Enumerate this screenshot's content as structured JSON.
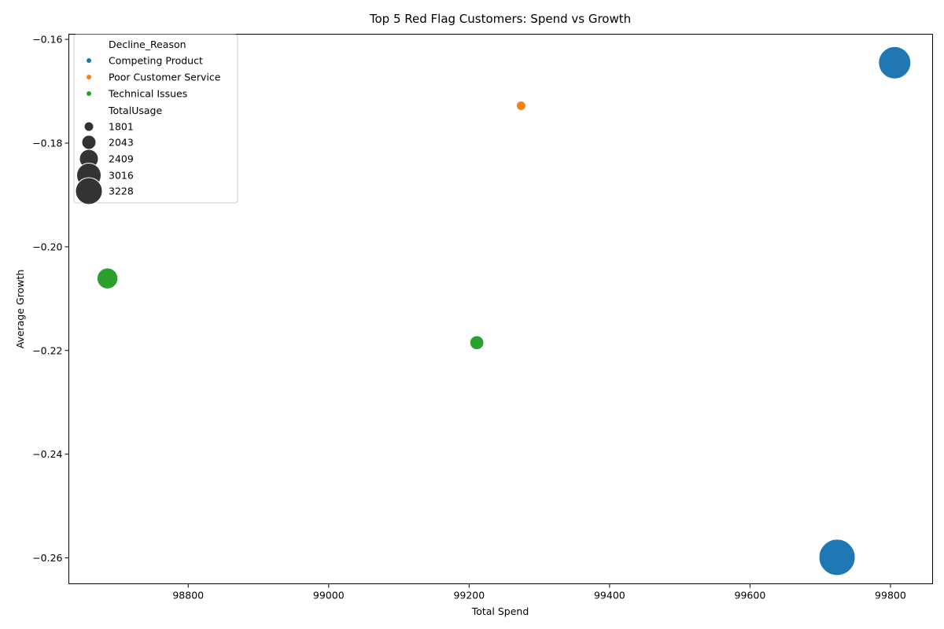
{
  "chart_data": {
    "type": "scatter",
    "title": "Top 5 Red Flag Customers: Spend vs Growth",
    "xlabel": "Total Spend",
    "ylabel": "Average Growth",
    "xlim": [
      98630,
      99860
    ],
    "ylim": [
      -0.265,
      -0.159
    ],
    "xticks": [
      98800,
      99000,
      99200,
      99400,
      99600,
      99800
    ],
    "xtick_labels": [
      "98800",
      "99000",
      "99200",
      "99400",
      "99600",
      "99800"
    ],
    "yticks": [
      -0.26,
      -0.24,
      -0.22,
      -0.2,
      -0.18,
      -0.16
    ],
    "ytick_labels": [
      "−0.26",
      "−0.24",
      "−0.22",
      "−0.20",
      "−0.18",
      "−0.16"
    ],
    "grid": false,
    "legend_placement": "top-left",
    "hue_title": "Decline_Reason",
    "size_title": "TotalUsage",
    "categories": [
      {
        "name": "Competing Product",
        "color": "#1f77b4"
      },
      {
        "name": "Poor Customer Service",
        "color": "#ff7f0e"
      },
      {
        "name": "Technical Issues",
        "color": "#2ca02c"
      }
    ],
    "size_levels": [
      {
        "label": "1801",
        "value": 1801
      },
      {
        "label": "2043",
        "value": 2043
      },
      {
        "label": "2409",
        "value": 2409
      },
      {
        "label": "3016",
        "value": 3016
      },
      {
        "label": "3228",
        "value": 3228
      }
    ],
    "points": [
      {
        "x": 99806,
        "y": -0.1645,
        "usage": 3016,
        "reason": "Competing Product"
      },
      {
        "x": 99274,
        "y": -0.1728,
        "usage": 1801,
        "reason": "Poor Customer Service"
      },
      {
        "x": 98685,
        "y": -0.2061,
        "usage": 2409,
        "reason": "Technical Issues"
      },
      {
        "x": 99211,
        "y": -0.2185,
        "usage": 2043,
        "reason": "Technical Issues"
      },
      {
        "x": 99724,
        "y": -0.2599,
        "usage": 3228,
        "reason": "Competing Product"
      }
    ]
  }
}
